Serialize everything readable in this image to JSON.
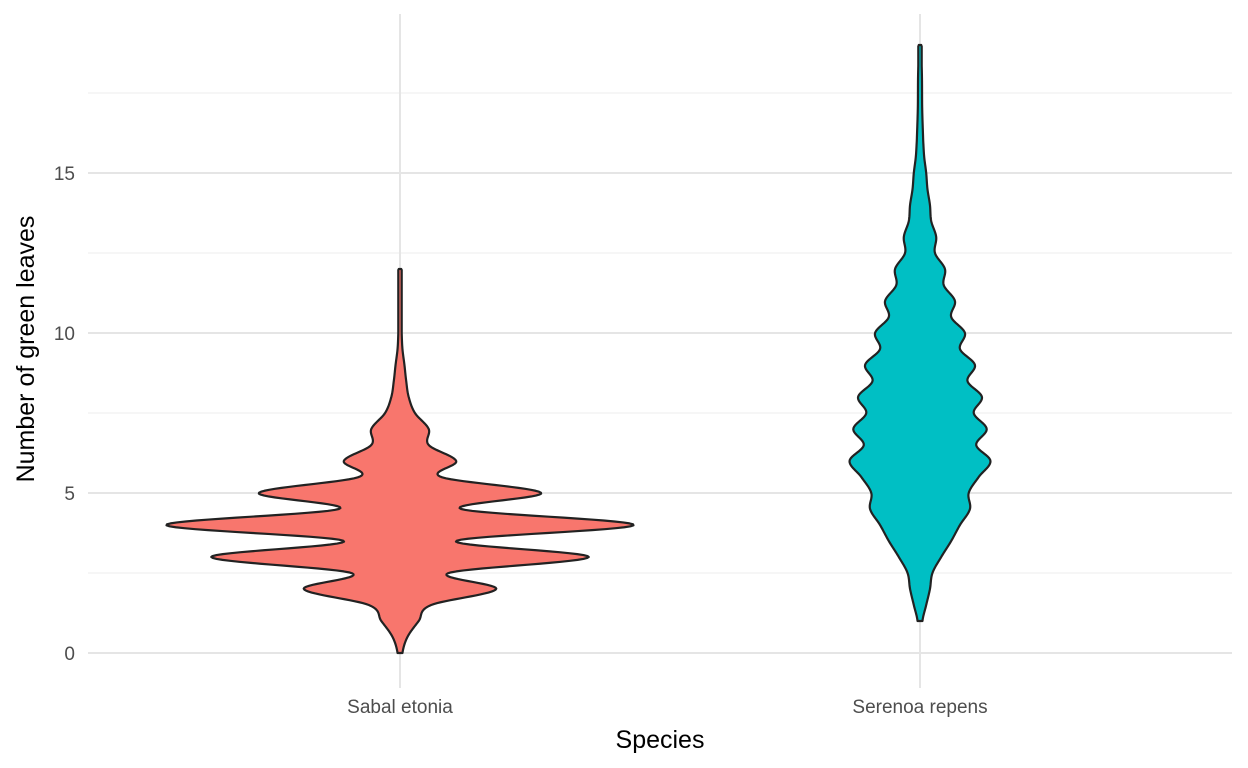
{
  "chart_data": {
    "type": "violin",
    "xlabel": "Species",
    "ylabel": "Number of green leaves",
    "ylim": [
      -1.5,
      20
    ],
    "yticks": [
      0,
      5,
      10,
      15
    ],
    "yticks_minor": [
      2.5,
      7.5,
      12.5,
      17.5
    ],
    "grid": true,
    "categories": [
      "Sabal etonia",
      "Serenoa repens"
    ],
    "series": [
      {
        "category": "Sabal etonia",
        "color": "#F8766D",
        "range": [
          0,
          12
        ],
        "profile": [
          [
            0,
            0.05
          ],
          [
            0.5,
            0.25
          ],
          [
            1,
            0.7
          ],
          [
            1.5,
            1.2
          ],
          [
            2,
            3.8
          ],
          [
            2.5,
            1.9
          ],
          [
            3,
            7.5
          ],
          [
            3.5,
            2.2
          ],
          [
            4,
            9.3
          ],
          [
            4.5,
            2.4
          ],
          [
            5,
            5.6
          ],
          [
            5.5,
            1.6
          ],
          [
            6,
            2.2
          ],
          [
            6.5,
            1.1
          ],
          [
            7,
            1.1
          ],
          [
            7.5,
            0.55
          ],
          [
            8,
            0.3
          ],
          [
            8.5,
            0.2
          ],
          [
            9,
            0.13
          ],
          [
            9.5,
            0.05
          ],
          [
            10,
            0.02
          ],
          [
            11,
            0.01
          ],
          [
            12,
            0.0
          ]
        ]
      },
      {
        "category": "Serenoa repens",
        "color": "#00BFC4",
        "range": [
          1,
          19
        ],
        "profile": [
          [
            1,
            0.05
          ],
          [
            1.5,
            0.2
          ],
          [
            2,
            0.35
          ],
          [
            2.5,
            0.45
          ],
          [
            3,
            0.8
          ],
          [
            3.5,
            1.2
          ],
          [
            4,
            1.55
          ],
          [
            4.5,
            1.95
          ],
          [
            5,
            1.9
          ],
          [
            5.5,
            2.3
          ],
          [
            6,
            2.77
          ],
          [
            6.5,
            2.2
          ],
          [
            7,
            2.62
          ],
          [
            7.5,
            2.1
          ],
          [
            8,
            2.43
          ],
          [
            8.5,
            1.85
          ],
          [
            9,
            2.15
          ],
          [
            9.5,
            1.55
          ],
          [
            10,
            1.75
          ],
          [
            10.5,
            1.2
          ],
          [
            11,
            1.35
          ],
          [
            11.5,
            0.9
          ],
          [
            12,
            0.95
          ],
          [
            12.5,
            0.55
          ],
          [
            13,
            0.6
          ],
          [
            13.5,
            0.4
          ],
          [
            14,
            0.35
          ],
          [
            14.5,
            0.25
          ],
          [
            15,
            0.2
          ],
          [
            15.5,
            0.12
          ],
          [
            16,
            0.08
          ],
          [
            17,
            0.04
          ],
          [
            18,
            0.03
          ],
          [
            19,
            0.0
          ]
        ]
      }
    ]
  }
}
